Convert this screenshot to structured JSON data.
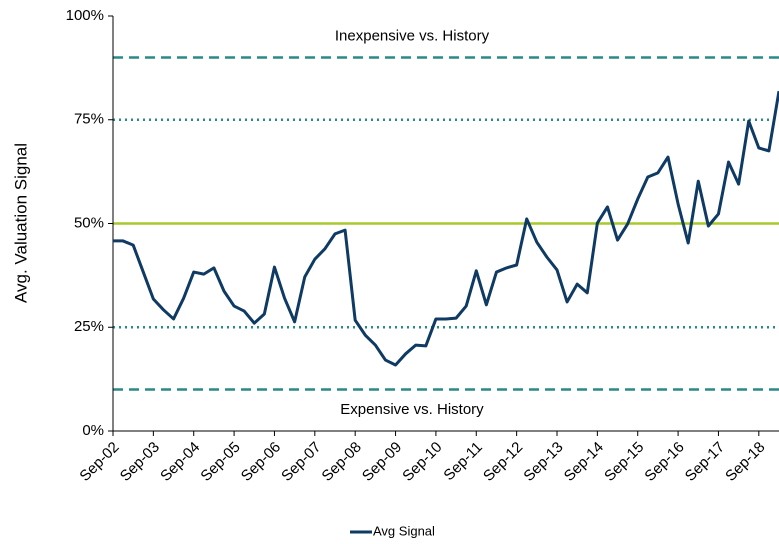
{
  "chart_data": {
    "type": "line",
    "ylabel": "Avg. Valuation Signal",
    "categories": [
      "Sep-02",
      null,
      null,
      null,
      "Sep-03",
      null,
      null,
      null,
      "Sep-04",
      null,
      null,
      null,
      "Sep-05",
      null,
      null,
      null,
      "Sep-06",
      null,
      null,
      null,
      "Sep-07",
      null,
      null,
      null,
      "Sep-08",
      null,
      null,
      null,
      "Sep-09",
      null,
      null,
      null,
      "Sep-10",
      null,
      null,
      null,
      "Sep-11",
      null,
      null,
      null,
      "Sep-12",
      null,
      null,
      null,
      "Sep-13",
      null,
      null,
      null,
      "Sep-14",
      null,
      null,
      null,
      "Sep-15",
      null,
      null,
      null,
      "Sep-16",
      null,
      null,
      null,
      "Sep-17",
      null,
      null,
      null,
      "Sep-18",
      null,
      null
    ],
    "series": [
      {
        "name": "Avg Signal",
        "color": "#0e3a63",
        "values": [
          45.8,
          45.8,
          44.8,
          38.3,
          31.8,
          29.2,
          27,
          32,
          38.3,
          37.8,
          39.3,
          33.7,
          30.1,
          28.9,
          26,
          28.2,
          39.5,
          32,
          26.3,
          37.1,
          41.4,
          43.9,
          47.5,
          48.4,
          26.7,
          23.1,
          20.7,
          17.1,
          15.9,
          18.6,
          20.7,
          20.5,
          27,
          27,
          27.2,
          30.1,
          38.6,
          30.4,
          38.3,
          39.3,
          40,
          51.1,
          45.5,
          41.9,
          38.8,
          31.1,
          35.4,
          33.3,
          50.1,
          54,
          46,
          49.9,
          55.9,
          61.2,
          62.2,
          66,
          54.7,
          45.3,
          60.2,
          49.4,
          52.3,
          64.8,
          59.5,
          74.7,
          68.2,
          67.5,
          81.9
        ]
      }
    ],
    "ylim": [
      0,
      100
    ],
    "yticks": [
      {
        "value": 0,
        "label": "0%"
      },
      {
        "value": 25,
        "label": "25%"
      },
      {
        "value": 50,
        "label": "50%"
      },
      {
        "value": 75,
        "label": "75%"
      },
      {
        "value": 100,
        "label": "100%"
      }
    ],
    "reference_lines": [
      {
        "value": 90,
        "style": "dashed",
        "color": "#2a8a8a"
      },
      {
        "value": 75,
        "style": "dotted",
        "color": "#2a8a8a"
      },
      {
        "value": 50,
        "style": "solid",
        "color": "#a6c92b"
      },
      {
        "value": 25,
        "style": "dotted",
        "color": "#2a8a8a"
      },
      {
        "value": 10,
        "style": "dashed",
        "color": "#2a8a8a"
      }
    ],
    "annotations": [
      {
        "text": "Inexpensive vs. History",
        "value": 95
      },
      {
        "text": "Expensive vs. History",
        "value": 5
      }
    ],
    "legend": "bottom"
  }
}
